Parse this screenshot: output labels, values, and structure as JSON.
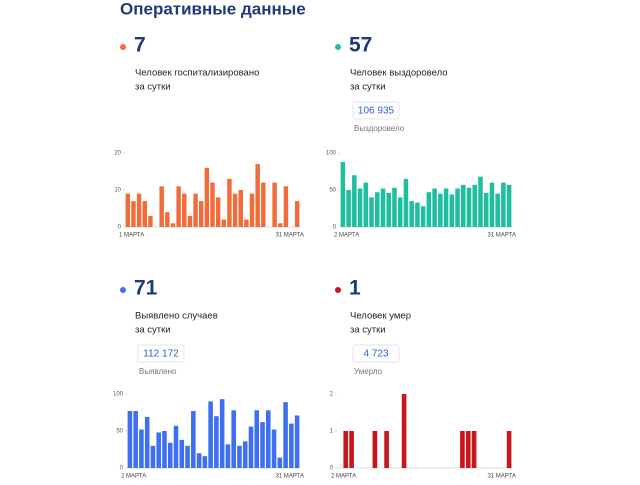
{
  "title": "Оперативные данные",
  "chart_data": [
    {
      "type": "bar",
      "value": 7,
      "label_lines": [
        "Человек госпитализировано",
        "за сутки"
      ],
      "color": "#f26b3a",
      "categories": [
        "1 МАРТА",
        null,
        null,
        null,
        null,
        null,
        null,
        null,
        null,
        null,
        null,
        null,
        null,
        null,
        null,
        null,
        null,
        null,
        null,
        null,
        null,
        null,
        null,
        null,
        null,
        null,
        null,
        null,
        null,
        null,
        "31 МАРТА"
      ],
      "values": [
        9,
        7,
        9,
        7,
        3,
        0,
        11,
        4,
        1,
        11,
        9,
        3,
        9,
        7,
        16,
        12,
        8,
        2,
        13,
        9,
        10,
        2,
        9,
        17,
        12,
        0,
        12,
        1,
        11,
        0,
        7
      ],
      "ylim": [
        0,
        20
      ],
      "yticks": [
        0,
        10,
        20
      ]
    },
    {
      "type": "bar",
      "value": 57,
      "label_lines": [
        "Человек выздоровело",
        "за сутки"
      ],
      "total": "106 935",
      "total_caption": "Выздоровело",
      "color": "#1dbf9e",
      "categories": [
        "2 МАРТА",
        null,
        null,
        null,
        null,
        null,
        null,
        null,
        null,
        null,
        null,
        null,
        null,
        null,
        null,
        null,
        null,
        null,
        null,
        null,
        null,
        null,
        null,
        null,
        null,
        null,
        null,
        null,
        null,
        "31 МАРТА"
      ],
      "values": [
        88,
        50,
        70,
        52,
        60,
        40,
        47,
        52,
        46,
        53,
        40,
        65,
        35,
        33,
        28,
        47,
        52,
        45,
        52,
        44,
        52,
        57,
        53,
        57,
        68,
        46,
        60,
        45,
        60,
        57
      ],
      "ylim": [
        0,
        100
      ],
      "yticks": [
        0,
        50,
        100
      ]
    },
    {
      "type": "bar",
      "value": 71,
      "label_lines": [
        "Выявлено случаев",
        "за сутки"
      ],
      "total": "112 172",
      "total_caption": "Выявлено",
      "color": "#3d6ff0",
      "categories": [
        "2 МАРТА",
        null,
        null,
        null,
        null,
        null,
        null,
        null,
        null,
        null,
        null,
        null,
        null,
        null,
        null,
        null,
        null,
        null,
        null,
        null,
        null,
        null,
        null,
        null,
        null,
        null,
        null,
        null,
        null,
        "31 МАРТА"
      ],
      "values": [
        77,
        77,
        52,
        69,
        30,
        48,
        50,
        34,
        57,
        38,
        30,
        77,
        20,
        16,
        90,
        70,
        93,
        32,
        78,
        30,
        36,
        56,
        78,
        62,
        78,
        52,
        14,
        89,
        60,
        71
      ],
      "ylim": [
        0,
        100
      ],
      "yticks": [
        0,
        50,
        100
      ]
    },
    {
      "type": "bar",
      "value": 1,
      "label_lines": [
        "Человек умер",
        "за сутки"
      ],
      "total": "4 723",
      "total_caption": "Умерло",
      "color": "#c8161d",
      "categories": [
        "2 МАРТА",
        null,
        null,
        null,
        null,
        null,
        null,
        null,
        null,
        null,
        null,
        null,
        null,
        null,
        null,
        null,
        null,
        null,
        null,
        null,
        null,
        null,
        null,
        null,
        null,
        null,
        null,
        null,
        null,
        "31 МАРТА"
      ],
      "values": [
        0,
        1,
        1,
        0,
        0,
        0,
        1,
        0,
        1,
        0,
        0,
        2,
        0,
        0,
        0,
        0,
        0,
        0,
        0,
        0,
        0,
        1,
        1,
        1,
        0,
        0,
        0,
        0,
        0,
        1
      ],
      "ylim": [
        0,
        2
      ],
      "yticks": [
        0,
        1,
        2
      ]
    }
  ]
}
